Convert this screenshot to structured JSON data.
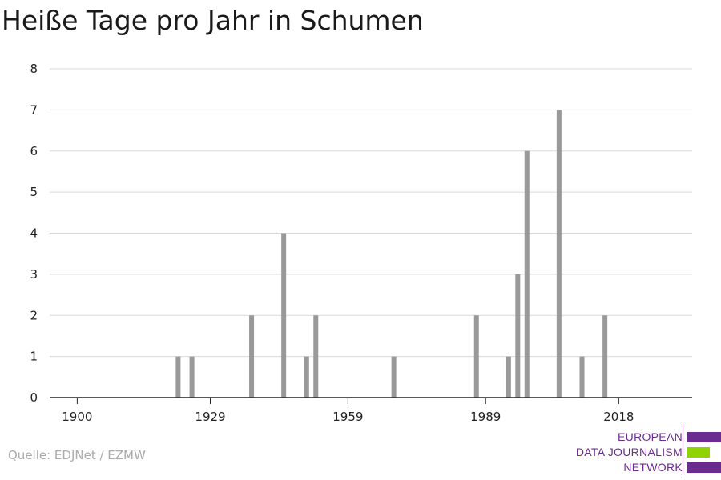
{
  "title": "Heiße Tage pro Jahr in Schumen",
  "source": "Quelle: EDJNet / EZMW",
  "logo": {
    "lines": [
      "EUROPEAN",
      "DATA JOURNALISM",
      "NETWORK"
    ],
    "colors": {
      "purple": "#6b2c8f",
      "green": "#8fd400"
    }
  },
  "chart_data": {
    "type": "bar",
    "title": "Heiße Tage pro Jahr in Schumen",
    "xlabel": "",
    "ylabel": "",
    "xlim": [
      1894,
      2034
    ],
    "ylim": [
      0,
      8
    ],
    "xticks": [
      1900,
      1929,
      1959,
      1989,
      2018
    ],
    "yticks": [
      0,
      1,
      2,
      3,
      4,
      5,
      6,
      7,
      8
    ],
    "grid": true,
    "bar_color": "#999999",
    "x": [
      1922,
      1925,
      1938,
      1945,
      1950,
      1952,
      1969,
      1987,
      1994,
      1996,
      1998,
      2005,
      2010,
      2015
    ],
    "values": [
      1,
      1,
      2,
      4,
      1,
      2,
      1,
      2,
      1,
      3,
      6,
      7,
      1,
      2
    ]
  }
}
